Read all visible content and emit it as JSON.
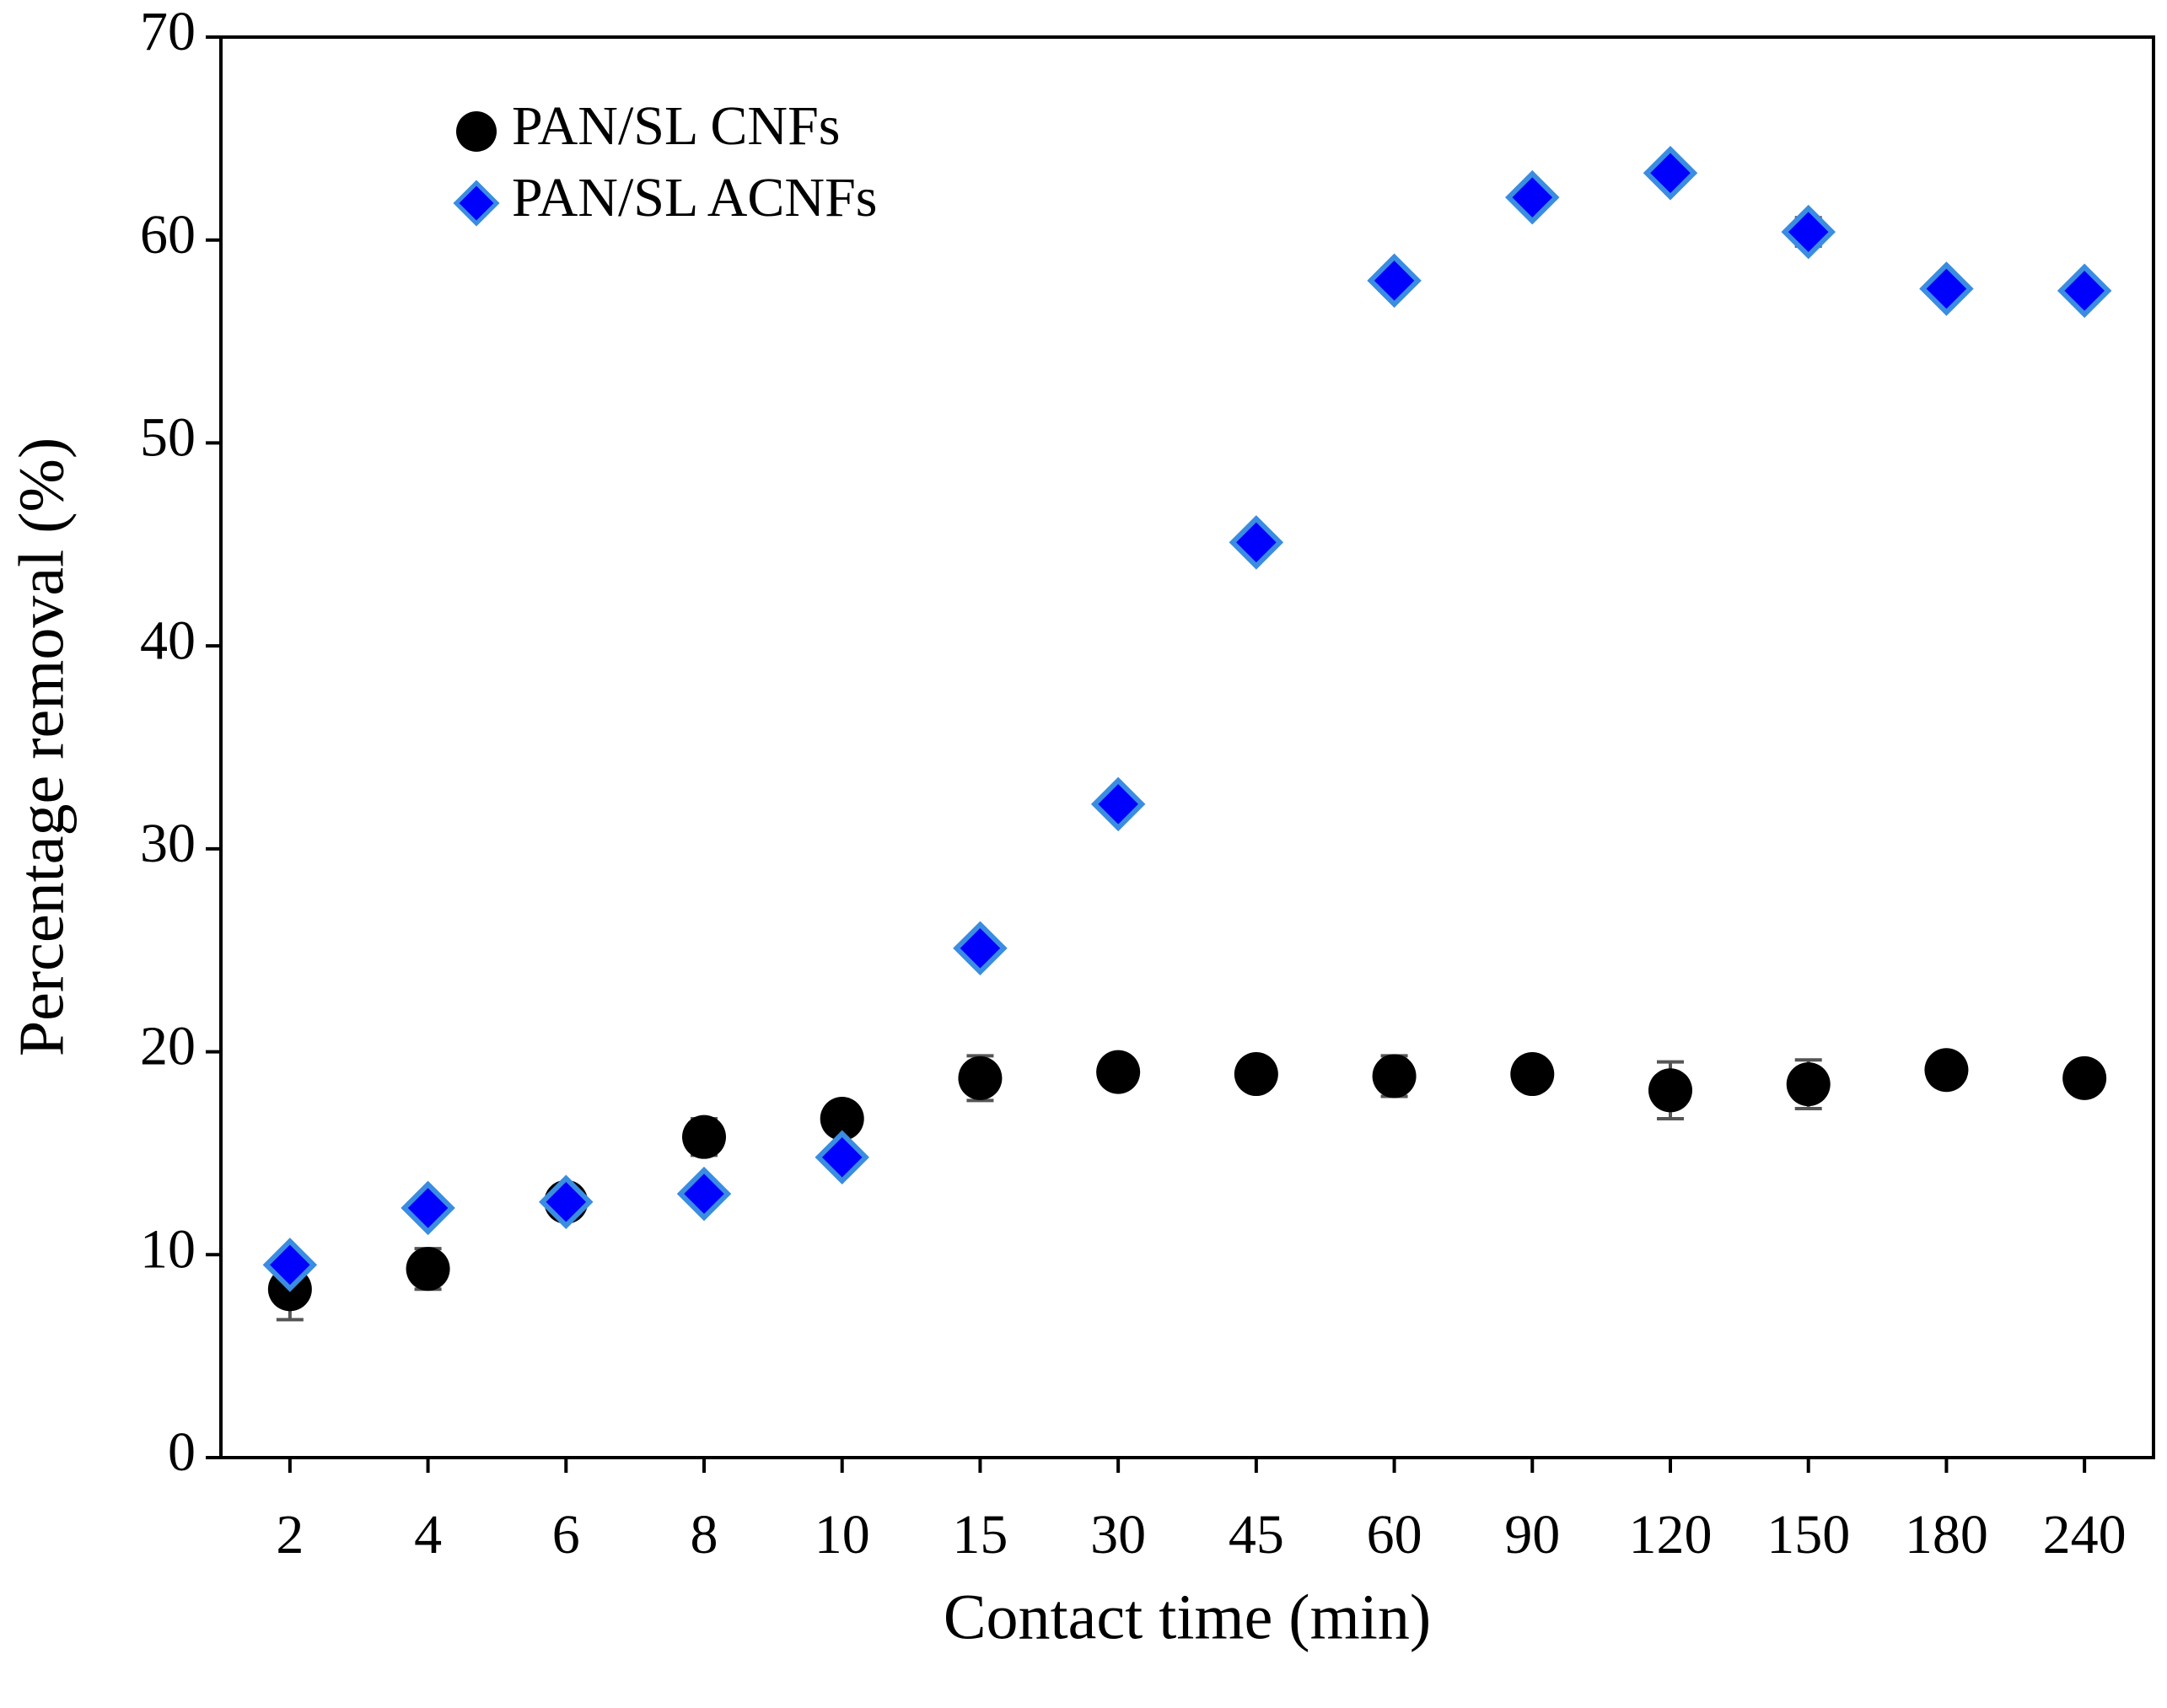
{
  "chart_data": {
    "type": "scatter",
    "x_label": "Contact time (min)",
    "y_label": "Percentage removal (%)",
    "categories": [
      "2",
      "4",
      "6",
      "8",
      "10",
      "15",
      "30",
      "45",
      "60",
      "90",
      "120",
      "150",
      "180",
      "240"
    ],
    "series": [
      {
        "name": "PAN/SL CNFs",
        "color": "#000000",
        "marker": "circle",
        "values": [
          8.3,
          9.3,
          12.6,
          15.8,
          16.7,
          18.7,
          19.0,
          18.9,
          18.8,
          18.9,
          18.1,
          18.4,
          19.1,
          18.7
        ],
        "errors": [
          1.5,
          1.0,
          0.3,
          0.9,
          0.3,
          1.1,
          0.3,
          0.3,
          1.0,
          0.3,
          1.4,
          1.2,
          0.3,
          0.3
        ]
      },
      {
        "name": "PAN/SL ACNFs",
        "color": "#0000ff",
        "marker": "diamond",
        "values": [
          9.5,
          12.3,
          12.6,
          13.0,
          14.8,
          25.1,
          32.2,
          45.1,
          58.0,
          62.1,
          63.3,
          60.4,
          57.6,
          57.5
        ],
        "errors": [
          0.3,
          0.3,
          0.3,
          0.3,
          0.4,
          0.5,
          0.4,
          0.3,
          0.6,
          0.3,
          0.3,
          0.7,
          0.5,
          0.6
        ]
      }
    ],
    "ylim": [
      0,
      70
    ],
    "yticks": [
      0,
      10,
      20,
      30,
      40,
      50,
      60,
      70
    ],
    "grid": false,
    "legend": "upper left"
  }
}
